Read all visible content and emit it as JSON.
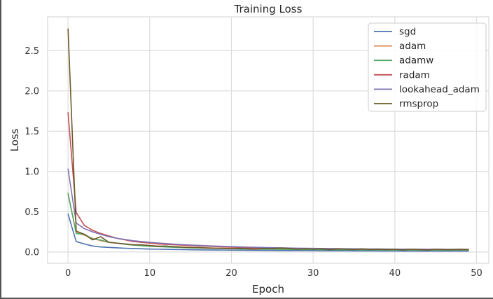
{
  "chart_data": {
    "type": "line",
    "title": "Training Loss",
    "xlabel": "Epoch",
    "ylabel": "Loss",
    "xlim": [
      -2.5,
      51.5
    ],
    "ylim": [
      -0.14,
      2.92
    ],
    "xticks": [
      0,
      10,
      20,
      30,
      40,
      50
    ],
    "yticks": [
      0.0,
      0.5,
      1.0,
      1.5,
      2.0,
      2.5
    ],
    "xtick_labels": [
      "0",
      "10",
      "20",
      "30",
      "40",
      "50"
    ],
    "ytick_labels": [
      "0.0",
      "0.5",
      "1.0",
      "1.5",
      "2.0",
      "2.5"
    ],
    "grid": true,
    "legend_position": "top-right",
    "series": [
      {
        "name": "sgd",
        "color": "#4c72b0",
        "values": [
          0.47,
          0.13,
          0.1,
          0.075,
          0.063,
          0.057,
          0.052,
          0.047,
          0.043,
          0.04,
          0.037,
          0.035,
          0.033,
          0.031,
          0.03,
          0.028,
          0.027,
          0.026,
          0.025,
          0.024,
          0.023,
          0.022,
          0.021,
          0.02,
          0.02,
          0.019,
          0.018,
          0.018,
          0.017,
          0.017,
          0.016,
          0.016,
          0.015,
          0.015,
          0.015,
          0.014,
          0.014,
          0.014,
          0.013,
          0.013,
          0.013,
          0.012,
          0.012,
          0.012,
          0.012,
          0.011,
          0.011,
          0.011,
          0.011,
          0.011
        ]
      },
      {
        "name": "adam",
        "color": "#dd8452",
        "values": [
          0.72,
          0.24,
          0.21,
          0.17,
          0.14,
          0.12,
          0.11,
          0.1,
          0.09,
          0.085,
          0.08,
          0.075,
          0.07,
          0.066,
          0.062,
          0.058,
          0.055,
          0.052,
          0.05,
          0.047,
          0.045,
          0.043,
          0.041,
          0.04,
          0.038,
          0.037,
          0.036,
          0.035,
          0.034,
          0.033,
          0.032,
          0.031,
          0.031,
          0.03,
          0.03,
          0.029,
          0.029,
          0.028,
          0.028,
          0.027,
          0.027,
          0.027,
          0.026,
          0.026,
          0.026,
          0.026,
          0.025,
          0.025,
          0.025,
          0.025
        ]
      },
      {
        "name": "adamw",
        "color": "#55a868",
        "values": [
          0.73,
          0.23,
          0.22,
          0.16,
          0.15,
          0.12,
          0.11,
          0.095,
          0.085,
          0.078,
          0.072,
          0.067,
          0.062,
          0.058,
          0.055,
          0.052,
          0.05,
          0.047,
          0.045,
          0.043,
          0.041,
          0.039,
          0.038,
          0.036,
          0.035,
          0.034,
          0.033,
          0.032,
          0.031,
          0.03,
          0.03,
          0.029,
          0.028,
          0.028,
          0.027,
          0.027,
          0.026,
          0.026,
          0.026,
          0.025,
          0.025,
          0.025,
          0.024,
          0.024,
          0.024,
          0.024,
          0.023,
          0.023,
          0.023,
          0.023
        ]
      },
      {
        "name": "radam",
        "color": "#c44e52",
        "values": [
          1.73,
          0.49,
          0.33,
          0.27,
          0.23,
          0.2,
          0.17,
          0.15,
          0.13,
          0.12,
          0.11,
          0.1,
          0.095,
          0.09,
          0.085,
          0.08,
          0.076,
          0.072,
          0.068,
          0.064,
          0.06,
          0.057,
          0.054,
          0.052,
          0.05,
          0.048,
          0.046,
          0.044,
          0.043,
          0.042,
          0.041,
          0.04,
          0.039,
          0.038,
          0.037,
          0.036,
          0.035,
          0.035,
          0.034,
          0.034,
          0.033,
          0.033,
          0.032,
          0.032,
          0.032,
          0.031,
          0.031,
          0.031,
          0.03,
          0.03
        ]
      },
      {
        "name": "lookahead_adam",
        "color": "#8172b3",
        "values": [
          1.03,
          0.36,
          0.29,
          0.25,
          0.22,
          0.19,
          0.17,
          0.155,
          0.14,
          0.13,
          0.12,
          0.112,
          0.105,
          0.098,
          0.092,
          0.087,
          0.082,
          0.078,
          0.074,
          0.07,
          0.067,
          0.064,
          0.061,
          0.058,
          0.056,
          0.054,
          0.052,
          0.05,
          0.048,
          0.047,
          0.045,
          0.044,
          0.043,
          0.042,
          0.041,
          0.04,
          0.039,
          0.038,
          0.038,
          0.037,
          0.036,
          0.036,
          0.035,
          0.035,
          0.034,
          0.034,
          0.034,
          0.033,
          0.033,
          0.033
        ]
      },
      {
        "name": "rmsprop",
        "color": "#6b5a2a",
        "values": [
          2.77,
          0.26,
          0.22,
          0.15,
          0.19,
          0.12,
          0.11,
          0.1,
          0.09,
          0.09,
          0.08,
          0.07,
          0.075,
          0.065,
          0.06,
          0.055,
          0.055,
          0.05,
          0.045,
          0.045,
          0.04,
          0.045,
          0.04,
          0.035,
          0.045,
          0.04,
          0.05,
          0.045,
          0.035,
          0.04,
          0.035,
          0.04,
          0.03,
          0.04,
          0.035,
          0.03,
          0.04,
          0.03,
          0.035,
          0.03,
          0.035,
          0.025,
          0.035,
          0.03,
          0.025,
          0.035,
          0.03,
          0.03,
          0.035,
          0.03
        ]
      }
    ]
  }
}
